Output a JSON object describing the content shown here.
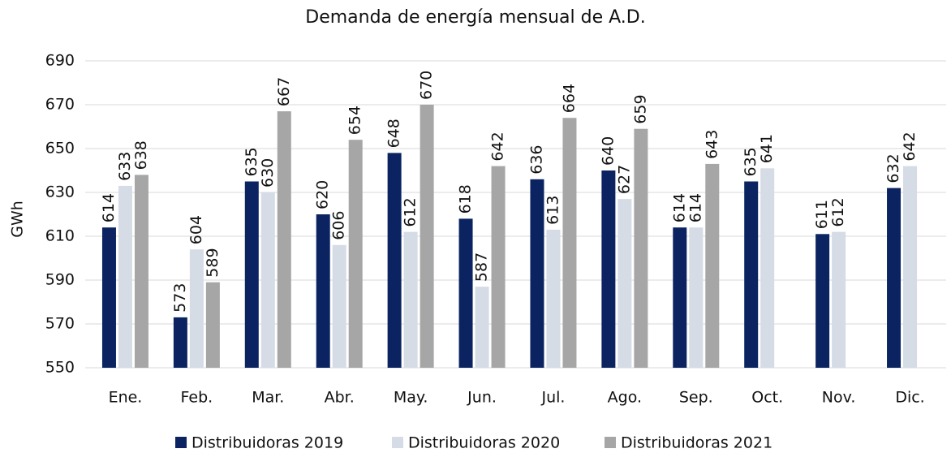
{
  "chart_data": {
    "type": "bar",
    "title": "Demanda de energía mensual de A.D.",
    "y_label": "GWh",
    "categories": [
      "Ene.",
      "Feb.",
      "Mar.",
      "Abr.",
      "May.",
      "Jun.",
      "Jul.",
      "Ago.",
      "Sep.",
      "Oct.",
      "Nov.",
      "Dic."
    ],
    "series": [
      {
        "name": "Distribuidoras 2019",
        "color": "#0b2461",
        "values": [
          614,
          573,
          635,
          620,
          648,
          618,
          636,
          640,
          614,
          635,
          611,
          632
        ]
      },
      {
        "name": "Distribuidoras 2020",
        "color": "#d5dce6",
        "values": [
          633,
          604,
          630,
          606,
          612,
          587,
          613,
          627,
          614,
          641,
          612,
          642
        ]
      },
      {
        "name": "Distribuidoras 2021",
        "color": "#a6a6a6",
        "values": [
          638,
          589,
          667,
          654,
          670,
          642,
          664,
          659,
          643,
          null,
          null,
          null
        ]
      }
    ],
    "ylim": [
      550,
      690
    ],
    "yticks": [
      550,
      570,
      590,
      610,
      630,
      650,
      670,
      690
    ],
    "grid": true,
    "data_labels": true,
    "legend": "bottom"
  }
}
